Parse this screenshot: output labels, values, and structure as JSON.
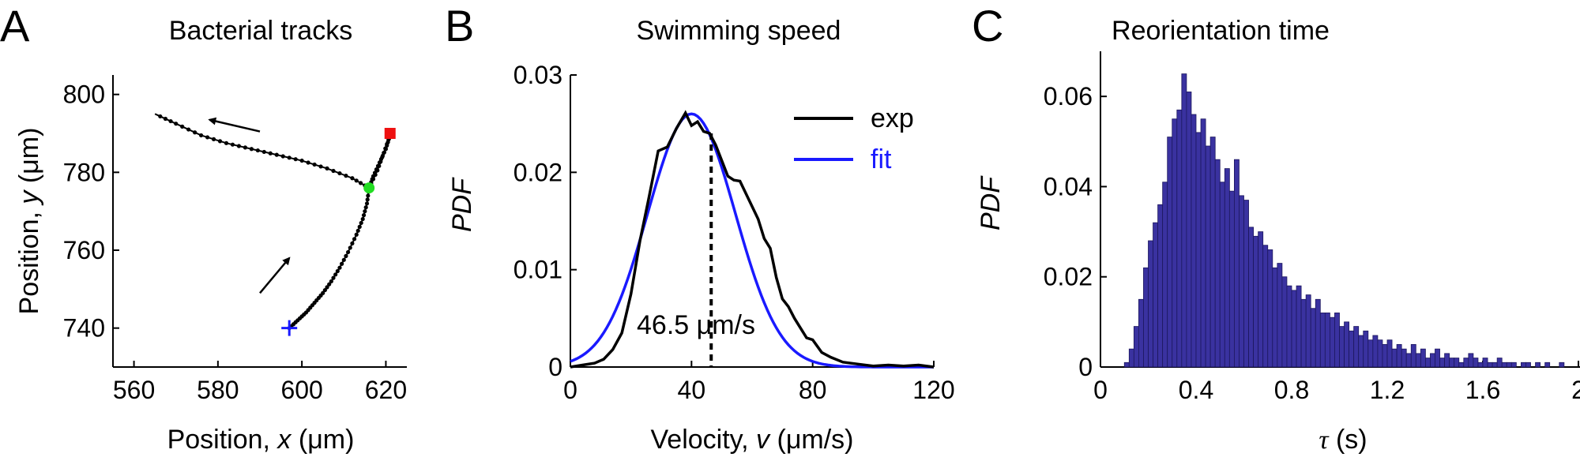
{
  "chart_data": [
    {
      "panel_label": "A",
      "type": "line",
      "title": "Bacterial tracks",
      "xlabel_parts": [
        "Position, ",
        "x",
        " (μm)"
      ],
      "ylabel_parts": [
        "Position, ",
        "y",
        " (μm)"
      ],
      "xlim": [
        555,
        625
      ],
      "ylim": [
        730,
        805
      ],
      "xticks": [
        560,
        580,
        600,
        620
      ],
      "yticks": [
        740,
        760,
        780,
        800
      ],
      "track_in": [
        [
          597,
          740
        ],
        [
          599,
          742
        ],
        [
          601,
          744
        ],
        [
          603,
          746.5
        ],
        [
          605,
          749
        ],
        [
          607,
          752
        ],
        [
          609,
          755.5
        ],
        [
          611,
          759.5
        ],
        [
          613,
          764
        ],
        [
          614.5,
          768
        ],
        [
          615.5,
          772
        ],
        [
          616,
          776
        ],
        [
          617,
          779
        ],
        [
          618.5,
          782.5
        ],
        [
          620,
          786
        ],
        [
          621,
          789.5
        ]
      ],
      "track_return": [
        [
          621,
          789.5
        ],
        [
          619.5,
          785
        ],
        [
          618,
          780.5
        ],
        [
          616,
          776
        ]
      ],
      "track_out": [
        [
          616,
          776
        ],
        [
          612,
          778.5
        ],
        [
          606,
          781
        ],
        [
          600,
          783
        ],
        [
          594,
          784.5
        ],
        [
          588,
          786
        ],
        [
          582,
          787.5
        ],
        [
          576,
          789.5
        ],
        [
          570,
          792.5
        ],
        [
          565,
          795
        ]
      ],
      "arrows": [
        {
          "from": [
            590,
            749
          ],
          "to": [
            597,
            758
          ]
        },
        {
          "from": [
            590,
            790.5
          ],
          "to": [
            578,
            793.5
          ]
        }
      ],
      "markers": {
        "start": {
          "symbol": "+",
          "x": 597,
          "y": 740,
          "color": "#1a1aff"
        },
        "tumble": {
          "symbol": "circle",
          "x": 616,
          "y": 776,
          "color": "#22dd22"
        },
        "end": {
          "symbol": "square",
          "x": 621,
          "y": 790,
          "color": "#ee1111"
        }
      }
    },
    {
      "panel_label": "B",
      "type": "line",
      "title": "Swimming speed",
      "xlabel_parts": [
        "Velocity, ",
        "v",
        " (μm/s)"
      ],
      "ylabel": "PDF",
      "xlim": [
        0,
        120
      ],
      "ylim": [
        0,
        0.03
      ],
      "xticks": [
        0,
        40,
        80,
        120
      ],
      "yticks": [
        0,
        0.01,
        0.02,
        0.03
      ],
      "ytick_labels": [
        "0",
        "0.01",
        "0.02",
        "0.03"
      ],
      "series": [
        {
          "name": "exp",
          "color": "#000000",
          "x": [
            0,
            4,
            8,
            11,
            14,
            17,
            20,
            23,
            26,
            29,
            32,
            35,
            38,
            40,
            42,
            44,
            46,
            48,
            50,
            52,
            54,
            56,
            58,
            60,
            62,
            64,
            66,
            68,
            70,
            72,
            74,
            76,
            78,
            80,
            83,
            86,
            90,
            95,
            100,
            105,
            110,
            115,
            120
          ],
          "y": [
            0,
            0.0002,
            0.0004,
            0.0008,
            0.0018,
            0.0035,
            0.0075,
            0.013,
            0.0175,
            0.0222,
            0.0226,
            0.0245,
            0.0261,
            0.0248,
            0.0252,
            0.0242,
            0.024,
            0.0228,
            0.0212,
            0.0196,
            0.0192,
            0.0191,
            0.0178,
            0.0165,
            0.0152,
            0.0132,
            0.0122,
            0.0092,
            0.007,
            0.0062,
            0.005,
            0.004,
            0.003,
            0.0028,
            0.0015,
            0.001,
            0.0005,
            0.0003,
            0.0001,
            0.0002,
            0.0001,
            0.0002,
            0
          ]
        },
        {
          "name": "fit",
          "color": "#1a1aff",
          "model": "gaussian",
          "peak": 0.026,
          "mean": 40,
          "sd": 14.5
        }
      ],
      "legend_position": "top-right",
      "annotation": {
        "text": "46.5 μm/s",
        "x": 46.5
      }
    },
    {
      "panel_label": "C",
      "type": "bar",
      "title": "Reorientation time",
      "xlabel_parts": [
        "τ",
        " (s)"
      ],
      "ylabel": "PDF",
      "xlim": [
        0,
        2.0
      ],
      "ylim": [
        0,
        0.07
      ],
      "xticks": [
        0,
        0.4,
        0.8,
        1.2,
        1.6,
        2
      ],
      "xtick_labels": [
        "0",
        "0.4",
        "0.8",
        "1.2",
        "1.6",
        "2"
      ],
      "yticks": [
        0,
        0.02,
        0.04,
        0.06
      ],
      "ytick_labels": [
        "0",
        "0.02",
        "0.04",
        "0.06"
      ],
      "bar_color": "#3a32a0",
      "bin_width": 0.02,
      "bin_start": 0.1,
      "values": [
        0.001,
        0.004,
        0.009,
        0.015,
        0.022,
        0.028,
        0.032,
        0.036,
        0.041,
        0.051,
        0.055,
        0.057,
        0.065,
        0.061,
        0.056,
        0.052,
        0.055,
        0.049,
        0.051,
        0.046,
        0.041,
        0.044,
        0.039,
        0.046,
        0.038,
        0.037,
        0.031,
        0.029,
        0.03,
        0.027,
        0.026,
        0.022,
        0.023,
        0.02,
        0.018,
        0.017,
        0.018,
        0.015,
        0.016,
        0.013,
        0.015,
        0.012,
        0.012,
        0.011,
        0.012,
        0.009,
        0.01,
        0.008,
        0.009,
        0.007,
        0.008,
        0.006,
        0.007,
        0.006,
        0.005,
        0.006,
        0.004,
        0.005,
        0.004,
        0.003,
        0.005,
        0.003,
        0.004,
        0.002,
        0.003,
        0.004,
        0.002,
        0.003,
        0.002,
        0.002,
        0.001,
        0.002,
        0.003,
        0.002,
        0.001,
        0.002,
        0.001,
        0.001,
        0.002,
        0.001,
        0.001,
        0.001,
        0.0,
        0.001,
        0.001,
        0.0,
        0.001,
        0.0,
        0.001,
        0.0,
        0.0,
        0.001,
        0.0,
        0.0,
        0.0,
        0.0,
        0.0,
        0.0,
        0.0,
        0.0
      ]
    }
  ]
}
